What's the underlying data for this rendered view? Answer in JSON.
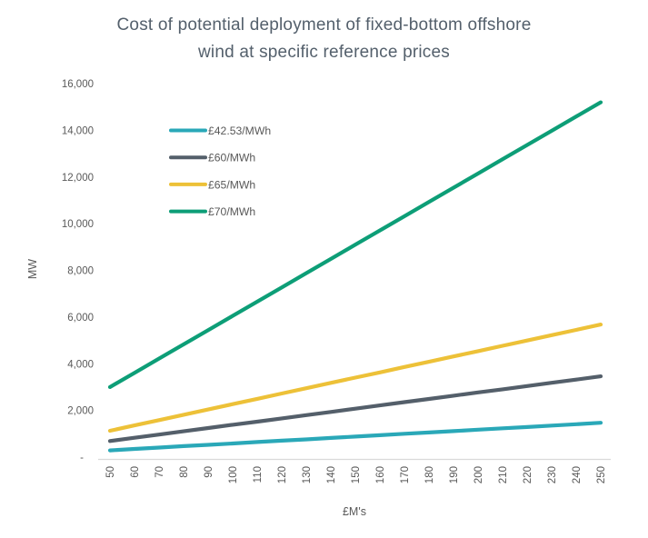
{
  "title_lines": [
    "Cost of potential deployment of fixed-bottom offshore",
    "wind at specific reference prices"
  ],
  "chart_data": {
    "type": "line",
    "title": "Cost of potential deployment of fixed-bottom offshore wind at specific reference prices",
    "xlabel": "£M's",
    "ylabel": "MW",
    "x": [
      50,
      60,
      70,
      80,
      90,
      100,
      110,
      120,
      130,
      140,
      150,
      160,
      170,
      180,
      190,
      200,
      210,
      220,
      230,
      240,
      250
    ],
    "series": [
      {
        "name": "£42.53/MWh",
        "color": "#2aa8b8",
        "values": [
          290,
          350,
          410,
          470,
          525,
          585,
          645,
          705,
          760,
          820,
          880,
          940,
          1000,
          1055,
          1115,
          1175,
          1235,
          1290,
          1350,
          1410,
          1470
        ]
      },
      {
        "name": "£60/MWh",
        "color": "#545f6a",
        "values": [
          690,
          830,
          965,
          1105,
          1245,
          1385,
          1520,
          1660,
          1800,
          1935,
          2075,
          2215,
          2355,
          2490,
          2630,
          2770,
          2905,
          3045,
          3185,
          3320,
          3460
        ]
      },
      {
        "name": "£65/MWh",
        "color": "#edc138",
        "values": [
          1130,
          1360,
          1585,
          1815,
          2040,
          2270,
          2495,
          2725,
          2950,
          3180,
          3405,
          3630,
          3860,
          4085,
          4315,
          4540,
          4770,
          4995,
          5225,
          5450,
          5680
        ]
      },
      {
        "name": "£70/MWh",
        "color": "#0d9e77",
        "values": [
          3000,
          3610,
          4220,
          4830,
          5440,
          6050,
          6660,
          7270,
          7880,
          8490,
          9100,
          9710,
          10320,
          10930,
          11540,
          12150,
          12760,
          13370,
          13980,
          14590,
          15200
        ]
      }
    ],
    "ylim": [
      0,
      16000
    ],
    "ytick_step": 2000,
    "zero_tick_label": "-",
    "y_tick_format": "thousands-comma",
    "x_tick_rotation_deg": -90,
    "grid": false,
    "legend_position": "upper-left-inside",
    "title_color": "#54606c",
    "axis_text_color": "#595959",
    "axis_line_color": "#d9d9d9"
  }
}
